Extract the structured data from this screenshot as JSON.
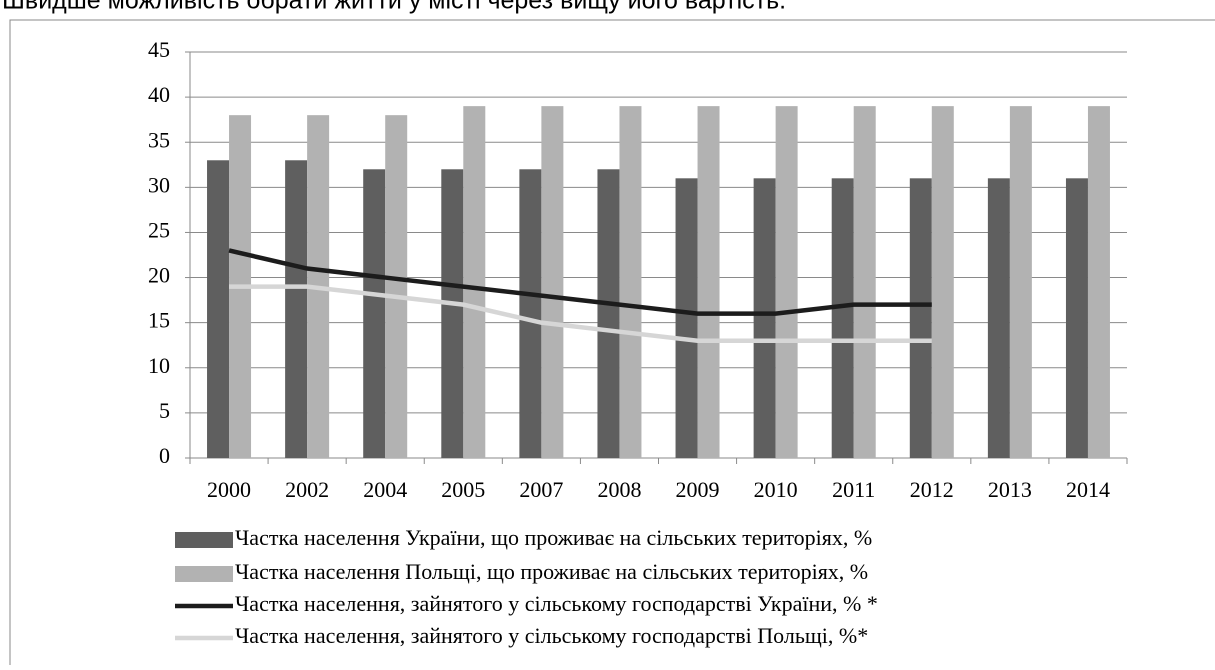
{
  "caption": "Швидше можливість обрати житти у місті через вищу його вартість.",
  "chart_data": {
    "type": "bar",
    "categories": [
      "2000",
      "2002",
      "2004",
      "2005",
      "2007",
      "2008",
      "2009",
      "2010",
      "2011",
      "2012",
      "2013",
      "2014"
    ],
    "series": [
      {
        "name": "Частка населення України, що проживає на сільських територіях, %",
        "type": "bar",
        "color": "#5f5f5f",
        "values": [
          33,
          33,
          32,
          32,
          32,
          32,
          31,
          31,
          31,
          31,
          31,
          31
        ]
      },
      {
        "name": "Частка населення Польщі, що проживає на сільських територіях, %",
        "type": "bar",
        "color": "#b2b2b2",
        "values": [
          38,
          38,
          38,
          39,
          39,
          39,
          39,
          39,
          39,
          39,
          39,
          39
        ]
      },
      {
        "name": "Частка населення, зайнятого у сільському господарстві України, % *",
        "type": "line",
        "color": "#1c1c1c",
        "values": [
          23,
          21,
          20,
          19,
          18,
          17,
          16,
          16,
          17,
          17,
          null,
          null
        ]
      },
      {
        "name": "Частка населення, зайнятого у сільському господарстві Польщі, %*",
        "type": "line",
        "color": "#d6d6d6",
        "values": [
          19,
          19,
          18,
          17,
          15,
          14,
          13,
          13,
          13,
          13,
          null,
          null
        ]
      }
    ],
    "ylim": [
      0,
      45
    ],
    "yticks": [
      0,
      5,
      10,
      15,
      20,
      25,
      30,
      35,
      40,
      45
    ],
    "grid": true,
    "legend": "bottom"
  }
}
